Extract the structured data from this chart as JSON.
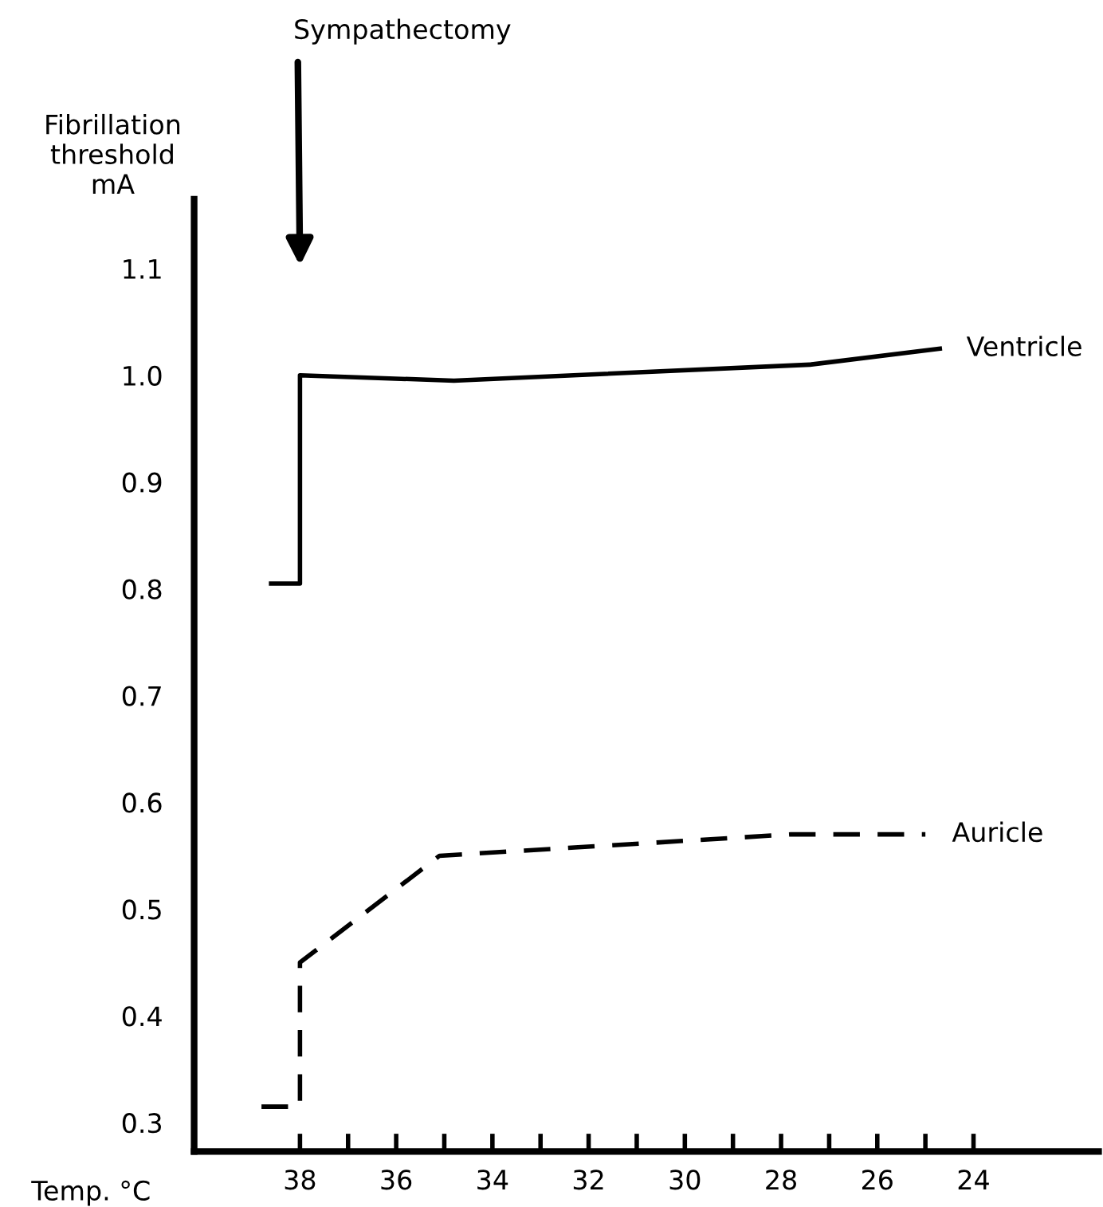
{
  "chart_data": {
    "type": "line",
    "xlabel": "Temp. °C",
    "ylabel": "Fibrillation\nthreshold\nmA",
    "xlim": [
      40.2,
      21.4
    ],
    "ylim": [
      0.273,
      1.165
    ],
    "xticks": [
      {
        "value": 38,
        "label": "38"
      },
      {
        "value": 37,
        "label": null
      },
      {
        "value": 36,
        "label": "36"
      },
      {
        "value": 35,
        "label": null
      },
      {
        "value": 34,
        "label": "34"
      },
      {
        "value": 33,
        "label": null
      },
      {
        "value": 32,
        "label": "32"
      },
      {
        "value": 31,
        "label": null
      },
      {
        "value": 30,
        "label": "30"
      },
      {
        "value": 29,
        "label": null
      },
      {
        "value": 28,
        "label": "28"
      },
      {
        "value": 27,
        "label": null
      },
      {
        "value": 26,
        "label": "26"
      },
      {
        "value": 25,
        "label": null
      },
      {
        "value": 24,
        "label": "24"
      }
    ],
    "yticks": [
      {
        "value": 0.3,
        "label": "0.3"
      },
      {
        "value": 0.4,
        "label": "0.4"
      },
      {
        "value": 0.5,
        "label": "0.5"
      },
      {
        "value": 0.6,
        "label": "0.6"
      },
      {
        "value": 0.7,
        "label": "0.7"
      },
      {
        "value": 0.8,
        "label": "0.8"
      },
      {
        "value": 0.9,
        "label": "0.9"
      },
      {
        "value": 1.0,
        "label": "1.0"
      },
      {
        "value": 1.1,
        "label": "1.1"
      }
    ],
    "series": [
      {
        "name": "Ventricle",
        "color": "#000000",
        "line_style": "solid",
        "x": [
          38.6,
          38.0,
          38.0,
          34.8,
          27.4,
          24.7
        ],
        "values": [
          0.805,
          0.805,
          1.0,
          0.995,
          1.01,
          1.025
        ]
      },
      {
        "name": "Auricle",
        "color": "#000000",
        "line_style": "dashed",
        "x": [
          38.8,
          38.0,
          38.0,
          35.1,
          27.8,
          25.0
        ],
        "values": [
          0.315,
          0.315,
          0.45,
          0.55,
          0.57,
          0.57
        ]
      }
    ],
    "annotations": [
      "Sympathectomy"
    ],
    "grid": false,
    "legend": false
  }
}
